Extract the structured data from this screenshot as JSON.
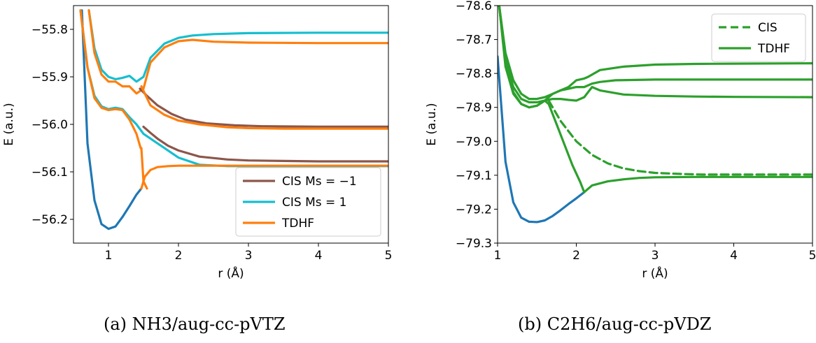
{
  "chart_data": [
    {
      "type": "line",
      "caption": {
        "prefix": "(a) ",
        "text": "NH3/aug-cc-pVTZ"
      },
      "xlabel": "r (Å)",
      "ylabel": "E (a.u.)",
      "xlim": [
        0.5,
        5.0
      ],
      "ylim": [
        -56.25,
        -55.75
      ],
      "xticks": [
        "1",
        "2",
        "3",
        "4",
        "5"
      ],
      "yticks": [
        "−55.8",
        "−55.9",
        "−56.0",
        "−56.1",
        "−56.2"
      ],
      "grid": false,
      "legend_position": "lower-right",
      "colors": {
        "ground": "#1f77b4",
        "cis_m": "#8c564b",
        "cis_p": "#17becf",
        "tdhf": "#ff7f0e"
      },
      "legend": [
        {
          "label": "CIS Ms = −1",
          "color": "#8c564b",
          "style": "solid"
        },
        {
          "label": "CIS Ms = 1",
          "color": "#17becf",
          "style": "solid"
        },
        {
          "label": "TDHF",
          "color": "#ff7f0e",
          "style": "solid"
        }
      ],
      "series": [
        {
          "color": "#1f77b4",
          "style": "solid",
          "x": [
            0.62,
            0.7,
            0.8,
            0.9,
            1.0,
            1.1,
            1.2,
            1.3,
            1.4,
            1.47
          ],
          "y": [
            -55.76,
            -56.04,
            -56.16,
            -56.21,
            -56.22,
            -56.215,
            -56.195,
            -56.172,
            -56.148,
            -56.135
          ]
        },
        {
          "color": "#17becf",
          "style": "solid",
          "x": [
            0.72,
            0.8,
            0.9,
            1.0,
            1.1,
            1.2,
            1.3,
            1.4,
            1.5,
            1.6,
            1.8,
            2.0,
            2.2,
            2.5,
            3.0,
            4.0,
            5.0
          ],
          "y": [
            -55.76,
            -55.84,
            -55.885,
            -55.9,
            -55.905,
            -55.902,
            -55.898,
            -55.91,
            -55.9,
            -55.86,
            -55.83,
            -55.818,
            -55.813,
            -55.81,
            -55.808,
            -55.807,
            -55.807
          ]
        },
        {
          "color": "#ff7f0e",
          "style": "solid",
          "x": [
            0.72,
            0.8,
            0.9,
            1.0,
            1.1,
            1.2,
            1.3,
            1.4,
            1.5,
            1.6,
            1.8,
            2.0,
            2.2,
            2.5,
            3.0,
            4.0,
            5.0
          ],
          "y": [
            -55.76,
            -55.85,
            -55.895,
            -55.91,
            -55.91,
            -55.92,
            -55.92,
            -55.935,
            -55.925,
            -55.87,
            -55.838,
            -55.825,
            -55.822,
            -55.826,
            -55.828,
            -55.829,
            -55.829
          ]
        },
        {
          "color": "#8c564b",
          "style": "solid",
          "x": [
            1.45,
            1.55,
            1.7,
            1.9,
            2.1,
            2.4,
            2.8,
            3.2,
            4.0,
            5.0
          ],
          "y": [
            -55.925,
            -55.94,
            -55.96,
            -55.978,
            -55.99,
            -55.998,
            -56.002,
            -56.004,
            -56.005,
            -56.005
          ]
        },
        {
          "color": "#ff7f0e",
          "style": "solid",
          "x": [
            1.47,
            1.6,
            1.8,
            2.0,
            2.3,
            2.7,
            3.0,
            3.5,
            4.0,
            5.0
          ],
          "y": [
            -55.92,
            -55.96,
            -55.98,
            -55.992,
            -56.0,
            -56.006,
            -56.008,
            -56.009,
            -56.009,
            -56.009
          ]
        },
        {
          "color": "#17becf",
          "style": "solid",
          "x": [
            0.6,
            0.7,
            0.8,
            0.9,
            1.0,
            1.1,
            1.2,
            1.3,
            1.4,
            1.5,
            1.7,
            2.0,
            2.3,
            2.7,
            3.0,
            4.0,
            5.0
          ],
          "y": [
            -55.76,
            -55.88,
            -55.94,
            -55.962,
            -55.968,
            -55.965,
            -55.968,
            -55.985,
            -56.0,
            -56.02,
            -56.04,
            -56.07,
            -56.085,
            -56.088,
            -56.088,
            -56.088,
            -56.088
          ]
        },
        {
          "color": "#ff7f0e",
          "style": "solid",
          "x": [
            0.6,
            0.7,
            0.8,
            0.9,
            1.0,
            1.1,
            1.2,
            1.3,
            1.4,
            1.46
          ],
          "y": [
            -55.76,
            -55.88,
            -55.945,
            -55.965,
            -55.97,
            -55.968,
            -55.97,
            -55.99,
            -56.02,
            -56.05
          ]
        },
        {
          "color": "#ff7f0e",
          "style": "solid",
          "x": [
            1.47,
            1.52,
            1.6,
            1.7,
            1.85,
            2.0,
            2.3,
            2.7,
            3.0,
            4.0,
            5.0
          ],
          "y": [
            -56.135,
            -56.11,
            -56.096,
            -56.09,
            -56.088,
            -56.087,
            -56.087,
            -56.087,
            -56.087,
            -56.087,
            -56.087
          ]
        },
        {
          "color": "#8c564b",
          "style": "solid",
          "x": [
            1.5,
            1.6,
            1.7,
            1.85,
            2.0,
            2.3,
            2.7,
            3.0,
            3.5,
            4.0,
            5.0
          ],
          "y": [
            -56.005,
            -56.018,
            -56.03,
            -56.045,
            -56.055,
            -56.068,
            -56.074,
            -56.076,
            -56.077,
            -56.078,
            -56.078
          ]
        },
        {
          "color": "#ff7f0e",
          "style": "solid",
          "x": [
            1.47,
            1.5,
            1.55
          ],
          "y": [
            -56.05,
            -56.12,
            -56.135
          ]
        }
      ]
    },
    {
      "type": "line",
      "caption": {
        "prefix": "(b) ",
        "text": "C2H6/aug-cc-pVDZ"
      },
      "xlabel": "r (Å)",
      "ylabel": "E (a.u.)",
      "xlim": [
        1.0,
        5.0
      ],
      "ylim": [
        -79.3,
        -78.6
      ],
      "xticks": [
        "1",
        "2",
        "3",
        "4",
        "5"
      ],
      "yticks": [
        "−78.6",
        "−78.7",
        "−78.8",
        "−78.9",
        "−79.0",
        "−79.1",
        "−79.2",
        "−79.3"
      ],
      "grid": false,
      "legend_position": "upper-right",
      "colors": {
        "ground": "#1f77b4",
        "green": "#2ca02c"
      },
      "legend": [
        {
          "label": "CIS",
          "color": "#2ca02c",
          "style": "dashed"
        },
        {
          "label": "TDHF",
          "color": "#2ca02c",
          "style": "solid"
        }
      ],
      "series": [
        {
          "color": "#1f77b4",
          "style": "solid",
          "x": [
            1.0,
            1.1,
            1.2,
            1.3,
            1.4,
            1.5,
            1.6,
            1.7,
            1.8,
            1.9,
            2.0,
            2.1
          ],
          "y": [
            -78.75,
            -79.06,
            -79.18,
            -79.225,
            -79.237,
            -79.238,
            -79.233,
            -79.22,
            -79.203,
            -79.185,
            -79.168,
            -79.15
          ]
        },
        {
          "color": "#2ca02c",
          "style": "solid",
          "x": [
            1.02,
            1.1,
            1.2,
            1.3,
            1.4,
            1.5,
            1.6,
            1.7,
            1.8,
            1.9,
            2.0,
            2.1,
            2.15,
            2.3,
            2.6,
            3.0,
            3.5,
            4.0,
            5.0
          ],
          "y": [
            -78.6,
            -78.74,
            -78.82,
            -78.86,
            -78.875,
            -78.875,
            -78.87,
            -78.86,
            -78.85,
            -78.84,
            -78.82,
            -78.815,
            -78.81,
            -78.79,
            -78.78,
            -78.774,
            -78.772,
            -78.771,
            -78.77
          ]
        },
        {
          "color": "#2ca02c",
          "style": "solid",
          "x": [
            1.02,
            1.1,
            1.2,
            1.3,
            1.4,
            1.5,
            1.6,
            1.7,
            1.8,
            1.9,
            2.0,
            2.1,
            2.2,
            2.3,
            2.5,
            3.0,
            3.5,
            4.0,
            5.0
          ],
          "y": [
            -78.6,
            -78.76,
            -78.84,
            -78.875,
            -78.885,
            -78.885,
            -78.88,
            -78.86,
            -78.85,
            -78.845,
            -78.84,
            -78.84,
            -78.83,
            -78.825,
            -78.82,
            -78.818,
            -78.818,
            -78.818,
            -78.818
          ]
        },
        {
          "color": "#2ca02c",
          "style": "solid",
          "x": [
            1.02,
            1.1,
            1.2,
            1.3,
            1.4,
            1.5,
            1.6,
            1.7,
            1.8,
            1.9,
            2.0,
            2.1,
            2.2,
            2.3,
            2.6,
            3.0,
            3.5,
            4.0,
            5.0
          ],
          "y": [
            -78.6,
            -78.78,
            -78.86,
            -78.89,
            -78.9,
            -78.895,
            -78.88,
            -78.875,
            -78.875,
            -78.878,
            -78.88,
            -78.87,
            -78.84,
            -78.85,
            -78.862,
            -78.866,
            -78.868,
            -78.869,
            -78.87
          ]
        },
        {
          "color": "#2ca02c",
          "style": "solid",
          "x": [
            1.02,
            1.1,
            1.2,
            1.3,
            1.4,
            1.5,
            1.6,
            1.65,
            1.75,
            1.85,
            1.95,
            2.05,
            2.1
          ],
          "y": [
            -78.6,
            -78.77,
            -78.855,
            -78.89,
            -78.9,
            -78.895,
            -78.88,
            -78.89,
            -78.95,
            -79.01,
            -79.07,
            -79.12,
            -79.15
          ]
        },
        {
          "color": "#2ca02c",
          "style": "solid",
          "x": [
            2.1,
            2.2,
            2.4,
            2.6,
            2.8,
            3.0,
            3.5,
            4.0,
            5.0
          ],
          "y": [
            -79.15,
            -79.13,
            -79.118,
            -79.112,
            -79.108,
            -79.106,
            -79.105,
            -79.105,
            -79.105
          ]
        },
        {
          "color": "#2ca02c",
          "style": "dashed",
          "x": [
            1.65,
            1.8,
            2.0,
            2.2,
            2.4,
            2.6,
            2.8,
            3.0,
            3.3,
            3.6,
            4.0,
            4.5,
            5.0
          ],
          "y": [
            -78.88,
            -78.94,
            -79.0,
            -79.04,
            -79.065,
            -79.08,
            -79.088,
            -79.093,
            -79.096,
            -79.098,
            -79.098,
            -79.098,
            -79.098
          ]
        }
      ]
    }
  ]
}
